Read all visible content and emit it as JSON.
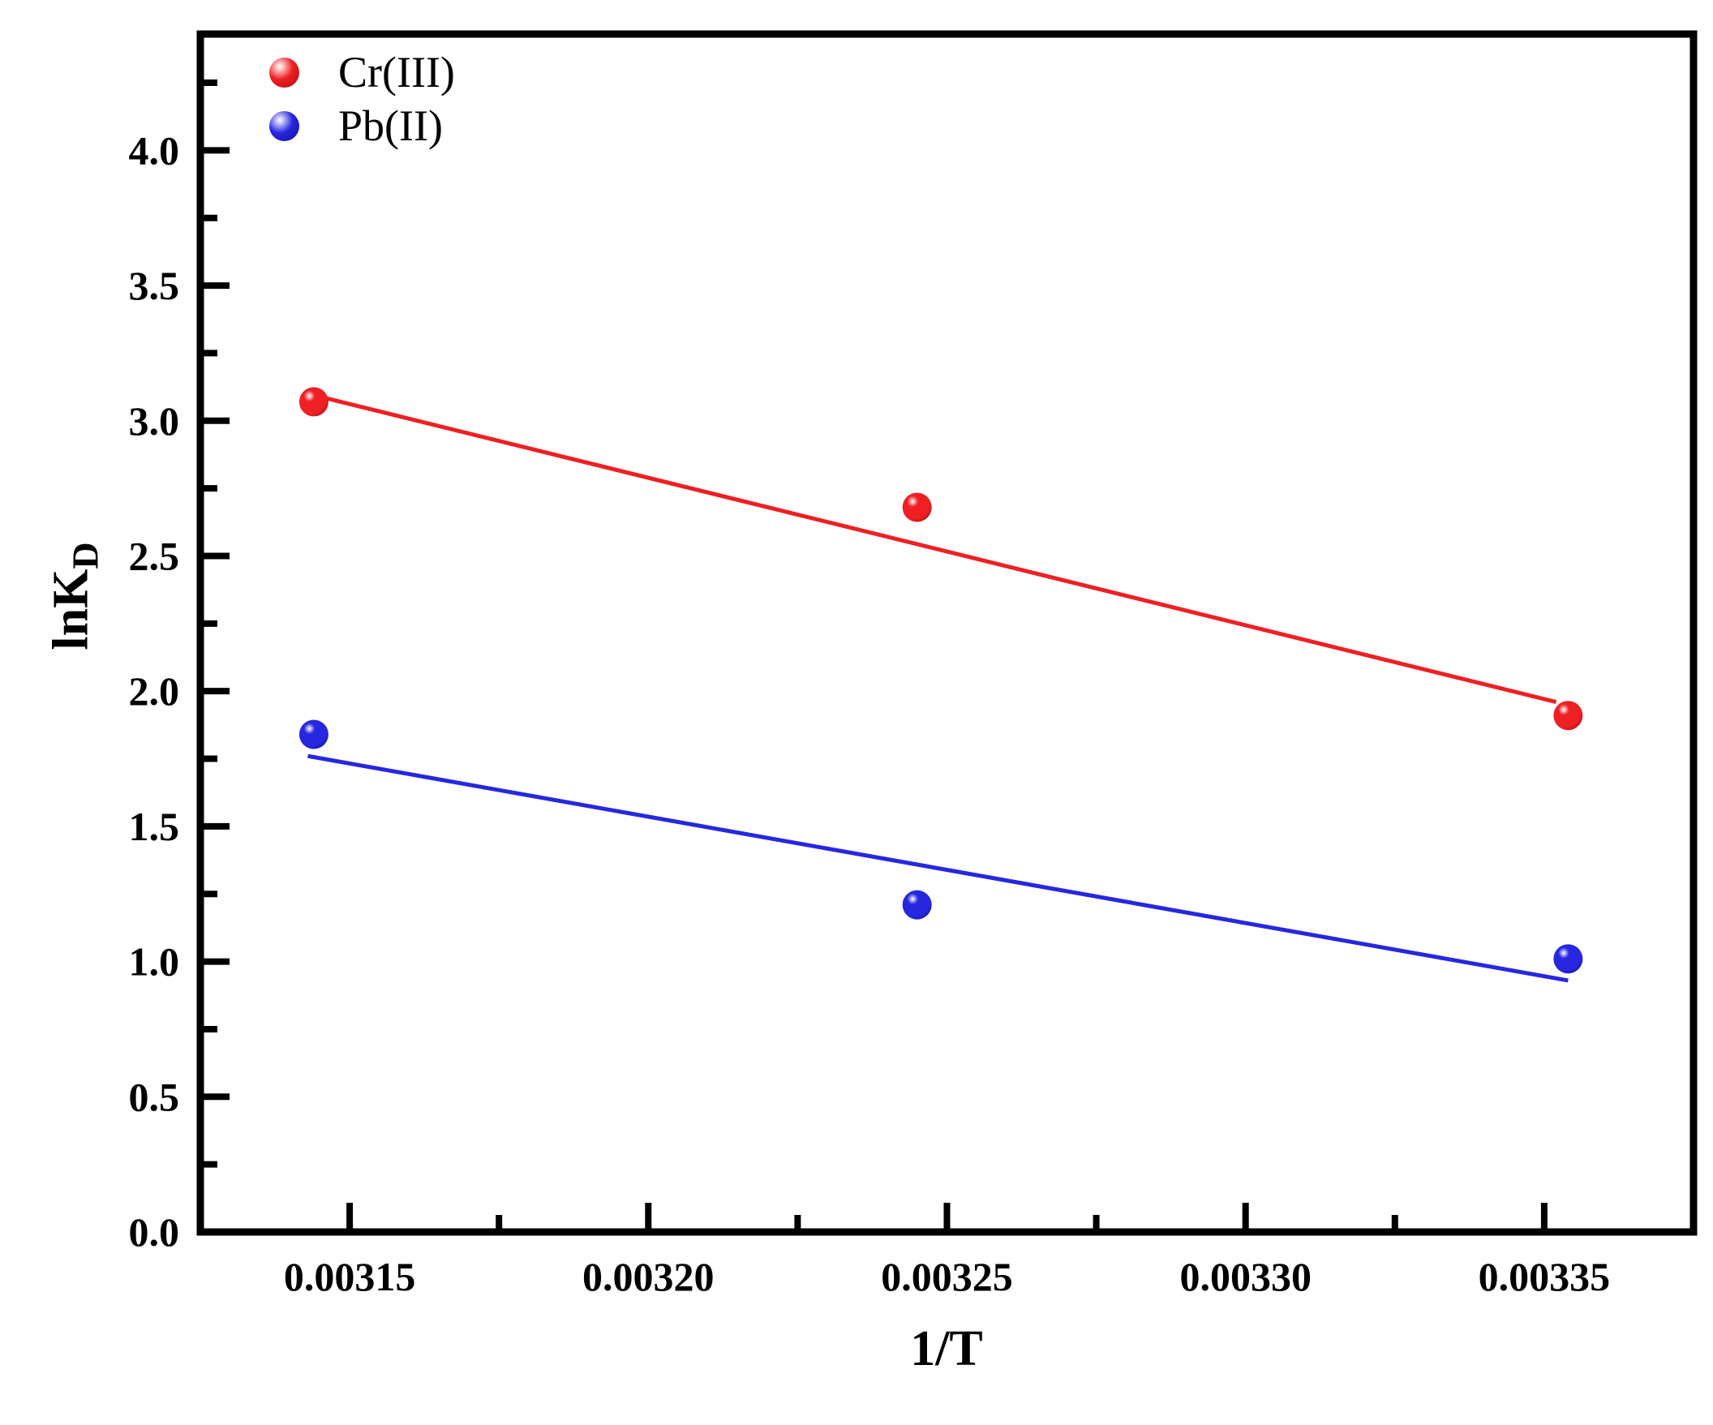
{
  "chart_data": {
    "type": "scatter",
    "title": "",
    "xlabel": "1/T",
    "ylabel_base": "lnK",
    "ylabel_sub": "D",
    "xlim": [
      0.003125,
      0.003375
    ],
    "ylim": [
      0,
      4.43
    ],
    "grid": false,
    "legend_position": "top-left",
    "x_major_ticks": [
      0.00315,
      0.0032,
      0.00325,
      0.0033,
      0.00335
    ],
    "x_tick_labels": [
      "0.00315",
      "0.00320",
      "0.00325",
      "0.00330",
      "0.00335"
    ],
    "x_minor_ticks": [
      0.003175,
      0.003225,
      0.003275,
      0.003325
    ],
    "y_major_ticks": [
      0.0,
      0.5,
      1.0,
      1.5,
      2.0,
      2.5,
      3.0,
      3.5,
      4.0
    ],
    "y_tick_labels": [
      "0.0",
      "0.5",
      "1.0",
      "1.5",
      "2.0",
      "2.5",
      "3.0",
      "3.5",
      "4.0"
    ],
    "y_minor_ticks": [
      0.25,
      0.75,
      1.25,
      1.75,
      2.25,
      2.75,
      3.25,
      3.75,
      4.25
    ],
    "x": [
      0.003144,
      0.003245,
      0.003354
    ],
    "series": [
      {
        "name": "Cr(III)",
        "color": "#ee2024",
        "color_dark": "#a80d12",
        "values": [
          3.07,
          2.68,
          1.91
        ],
        "fit_line": {
          "x1": 0.003143,
          "y1": 3.1,
          "x2": 0.003352,
          "y2": 1.96
        }
      },
      {
        "name": "Pb(II)",
        "color": "#2727e0",
        "color_dark": "#12129e",
        "values": [
          1.84,
          1.21,
          1.01
        ],
        "fit_line": {
          "x1": 0.003143,
          "y1": 1.76,
          "x2": 0.003354,
          "y2": 0.93
        }
      }
    ]
  }
}
